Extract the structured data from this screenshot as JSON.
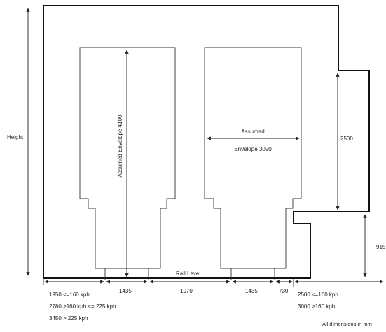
{
  "labels": {
    "height": "Height",
    "envelope_left": "Assumed Envelope 4100",
    "envelope_right_line1": "Assumed",
    "envelope_right_line2": "Envelope 3020",
    "dim_2500": "2500",
    "dim_915": "915",
    "rail_level": "Rail Level",
    "footer_note": "All dimensions in mm"
  },
  "bottom_dims": {
    "d1_line1": "1950 <=160 kph",
    "d1_line2": "2780 >160 kph <= 225 kph",
    "d1_line3": "3450 > 225 kph",
    "d2": "1435",
    "d3": "1970",
    "d4": "1435",
    "d5": "730",
    "d6_line1": "2500 <=160 kph",
    "d6_line2": "3000 >160 kph"
  },
  "colors": {
    "line": "#111111",
    "background": "#ffffff"
  }
}
